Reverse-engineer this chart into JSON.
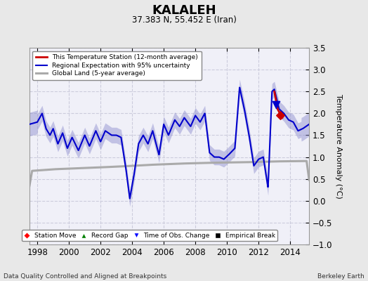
{
  "title": "KALALEH",
  "subtitle": "37.383 N, 55.452 E (Iran)",
  "ylabel": "Temperature Anomaly (°C)",
  "xlabel_bottom": "Data Quality Controlled and Aligned at Breakpoints",
  "xlabel_right": "Berkeley Earth",
  "xlim": [
    1997.5,
    2015.2
  ],
  "ylim": [
    -1.0,
    3.5
  ],
  "yticks": [
    -1,
    -0.5,
    0,
    0.5,
    1,
    1.5,
    2,
    2.5,
    3,
    3.5
  ],
  "xticks": [
    1998,
    2000,
    2002,
    2004,
    2006,
    2008,
    2010,
    2012,
    2014
  ],
  "outer_bg_color": "#e8e8e8",
  "plot_bg_color": "#f0f0f8",
  "grid_color": "#ccccdd",
  "regional_line_color": "#0000cc",
  "regional_fill_color": "#8888cc",
  "station_line_color": "#cc0000",
  "global_line_color": "#aaaaaa",
  "regional_key_times": [
    1997.5,
    1998.0,
    1998.3,
    1998.55,
    1998.8,
    1999.0,
    1999.3,
    1999.6,
    1999.9,
    2000.2,
    2000.6,
    2001.0,
    2001.3,
    2001.7,
    2002.0,
    2002.3,
    2002.7,
    2003.0,
    2003.3,
    2003.6,
    2003.85,
    2004.1,
    2004.4,
    2004.7,
    2005.0,
    2005.3,
    2005.7,
    2006.0,
    2006.3,
    2006.7,
    2007.0,
    2007.3,
    2007.7,
    2008.0,
    2008.3,
    2008.6,
    2008.9,
    2009.2,
    2009.5,
    2009.8,
    2010.1,
    2010.5,
    2010.8,
    2011.1,
    2011.4,
    2011.7,
    2012.0,
    2012.3,
    2012.6,
    2012.85,
    2013.0,
    2013.3,
    2013.6,
    2013.9,
    2014.2,
    2014.5,
    2014.8,
    2015.2
  ],
  "regional_key_vals": [
    1.75,
    1.8,
    2.0,
    1.65,
    1.5,
    1.65,
    1.3,
    1.55,
    1.2,
    1.45,
    1.15,
    1.5,
    1.25,
    1.6,
    1.35,
    1.6,
    1.5,
    1.5,
    1.45,
    0.75,
    0.05,
    0.55,
    1.3,
    1.5,
    1.3,
    1.6,
    1.05,
    1.75,
    1.5,
    1.85,
    1.7,
    1.9,
    1.7,
    1.95,
    1.8,
    2.0,
    1.1,
    1.0,
    1.0,
    0.95,
    1.05,
    1.2,
    2.6,
    2.1,
    1.5,
    0.8,
    0.95,
    1.0,
    0.3,
    2.5,
    2.55,
    2.1,
    2.0,
    1.85,
    1.8,
    1.6,
    1.65,
    1.75
  ],
  "global_key_times": [
    1997.5,
    1999,
    2001,
    2003,
    2005,
    2007,
    2009,
    2011,
    2013,
    2015.2
  ],
  "global_key_vals": [
    0.68,
    0.72,
    0.75,
    0.78,
    0.82,
    0.85,
    0.87,
    0.88,
    0.9,
    0.91
  ],
  "station_key_times": [
    2013.0,
    2013.1,
    2013.2,
    2013.35,
    2013.5
  ],
  "station_key_vals": [
    2.5,
    2.3,
    2.1,
    2.0,
    1.9
  ],
  "uncertainty": 0.18,
  "uncertainty_edge_factor": 1.5,
  "obs_change_x": 2013.1,
  "obs_change_y": 2.2,
  "station_move_x": 2013.35,
  "station_move_y": 1.95
}
